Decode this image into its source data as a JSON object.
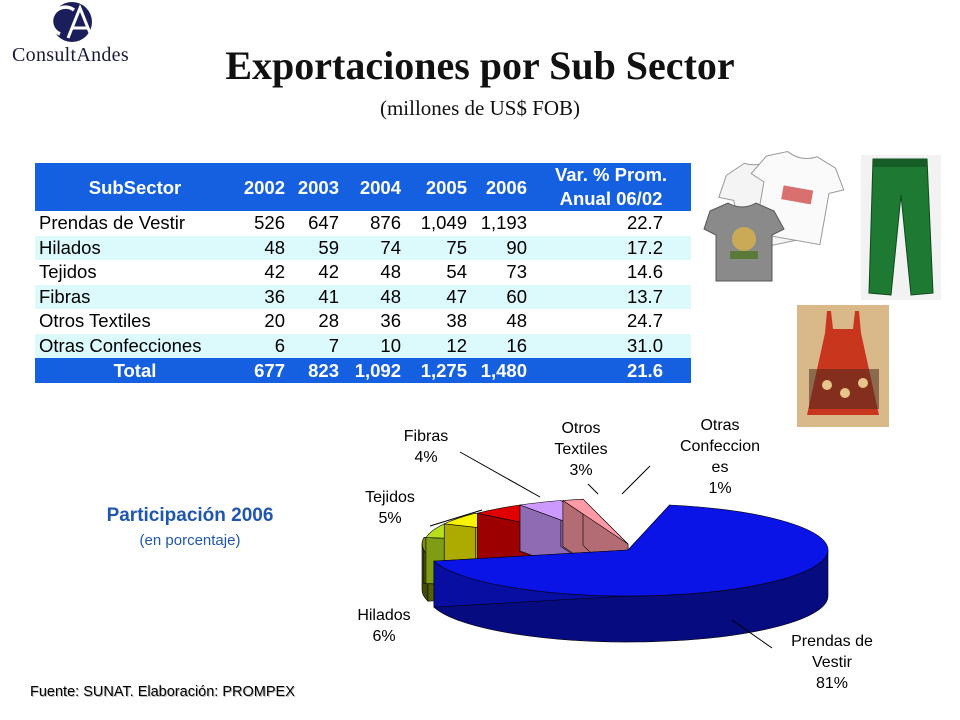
{
  "header": {
    "logo_text": "ConsultAndes",
    "title": "Exportaciones por Sub Sector",
    "subtitle": "(millones de US$ FOB)"
  },
  "table": {
    "header": {
      "subsector": "SubSector",
      "years": [
        "2002",
        "2003",
        "2004",
        "2005",
        "2006"
      ],
      "var_line1": "Var. % Prom.",
      "var_line2": "Anual 06/02"
    },
    "rows": [
      {
        "label": "Prendas de Vestir",
        "values": [
          "526",
          "647",
          "876",
          "1,049",
          "1,193"
        ],
        "var": "22.7"
      },
      {
        "label": "Hilados",
        "values": [
          "48",
          "59",
          "74",
          "75",
          "90"
        ],
        "var": "17.2"
      },
      {
        "label": "Tejidos",
        "values": [
          "42",
          "42",
          "48",
          "54",
          "73"
        ],
        "var": "14.6"
      },
      {
        "label": "Fibras",
        "values": [
          "36",
          "41",
          "48",
          "47",
          "60"
        ],
        "var": "13.7"
      },
      {
        "label": "Otros Textiles",
        "values": [
          "20",
          "28",
          "36",
          "38",
          "48"
        ],
        "var": "24.7"
      },
      {
        "label": "Otras Confecciones",
        "values": [
          "6",
          "7",
          "10",
          "12",
          "16"
        ],
        "var": "31.0"
      }
    ],
    "total": {
      "label": "Total",
      "values": [
        "677",
        "823",
        "1,092",
        "1,275",
        "1,480"
      ],
      "var": "21.6"
    }
  },
  "chart_label": {
    "title": "Participación 2006",
    "subtitle": "(en porcentaje)"
  },
  "chart_data": {
    "type": "pie",
    "title": "Participación 2006",
    "subtitle": "(en porcentaje)",
    "slices": [
      {
        "name": "Prendas de Vestir",
        "value": 81,
        "label_lines": [
          "Prendas de",
          "Vestir",
          "81%"
        ],
        "color": "#0a14e6"
      },
      {
        "name": "Hilados",
        "value": 6,
        "label_lines": [
          "Hilados",
          "6%"
        ],
        "color": "#7a8a0c"
      },
      {
        "name": "Tejidos",
        "value": 5,
        "label_lines": [
          "Tejidos",
          "5%"
        ],
        "color": "#b6e01c"
      },
      {
        "name": "Fibras",
        "value": 4,
        "label_lines": [
          "Fibras",
          "4%"
        ],
        "color": "#f8f400"
      },
      {
        "name": "Otros Textiles",
        "value": 3,
        "label_lines": [
          "Otros",
          "Textiles",
          "3%"
        ],
        "color": "#cc99ff"
      },
      {
        "name": "Otras Confecciones",
        "value": 1,
        "label_lines": [
          "Otras",
          "Confeccion",
          "es",
          "1%"
        ],
        "color": "#ff9aa6"
      }
    ],
    "extra_slice_color": "#e00000"
  },
  "footer": {
    "source": "Fuente: SUNAT.  Elaboración: PROMPEX"
  }
}
